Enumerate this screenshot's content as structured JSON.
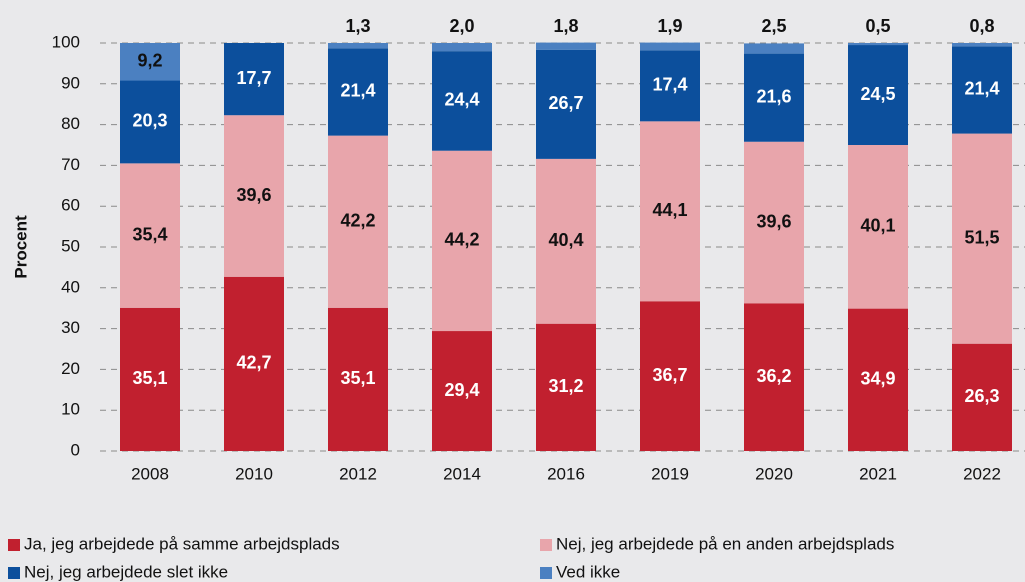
{
  "chart_data": {
    "type": "bar",
    "stacked": true,
    "y_label": "Procent",
    "categories": [
      "2008",
      "2010",
      "2012",
      "2014",
      "2016",
      "2019",
      "2020",
      "2021",
      "2022"
    ],
    "series": [
      {
        "name": "Ja, jeg arbejdede på samme arbejdsplads",
        "color": "#c1202f",
        "values": [
          35.1,
          42.7,
          35.1,
          29.4,
          31.2,
          36.7,
          36.2,
          34.9,
          26.3
        ],
        "value_labels": [
          "35,1",
          "42,7",
          "35,1",
          "29,4",
          "31,2",
          "36,7",
          "36,2",
          "34,9",
          "26,3"
        ]
      },
      {
        "name": "Nej, jeg arbejdede på en anden arbejdsplads",
        "color": "#e8a5ab",
        "values": [
          35.4,
          39.6,
          42.2,
          44.2,
          40.4,
          44.1,
          39.6,
          40.1,
          51.5
        ],
        "value_labels": [
          "35,4",
          "39,6",
          "42,2",
          "44,2",
          "40,4",
          "44,1",
          "39,6",
          "40,1",
          "51,5"
        ]
      },
      {
        "name": "Nej, jeg arbejdede slet ikke",
        "color": "#0c4f9c",
        "values": [
          20.3,
          17.7,
          21.4,
          24.4,
          26.7,
          17.4,
          21.6,
          24.5,
          21.4
        ],
        "value_labels": [
          "20,3",
          "17,7",
          "21,4",
          "24,4",
          "26,7",
          "17,4",
          "21,6",
          "24,5",
          "21,4"
        ]
      },
      {
        "name": "Ved ikke",
        "color": "#4b80c1",
        "values": [
          9.2,
          0,
          1.3,
          2.0,
          1.8,
          1.9,
          2.5,
          0.5,
          0.8
        ],
        "value_labels": [
          "9,2",
          null,
          "1,3",
          "2,0",
          "1,8",
          "1,9",
          "2,5",
          "0,5",
          "0,8"
        ]
      }
    ],
    "ylim": [
      0,
      100
    ],
    "yticks": [
      0,
      10,
      20,
      30,
      40,
      50,
      60,
      70,
      80,
      90,
      100
    ],
    "grid": true
  }
}
